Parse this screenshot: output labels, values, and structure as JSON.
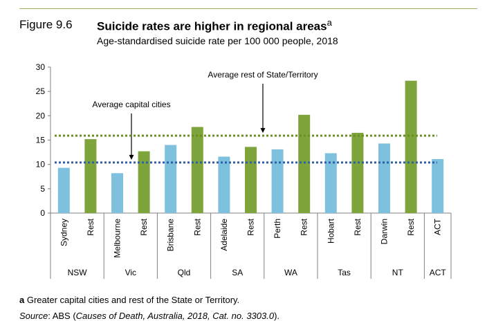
{
  "figure": {
    "label": "Figure 9.6",
    "title": "Suicide rates are higher in regional areas",
    "title_superscript": "a",
    "subtitle": "Age-standardised suicide rate per 100 000 people, 2018"
  },
  "footnote": {
    "marker": "a",
    "text": " Greater capital cities and rest of the State or Territory."
  },
  "source": {
    "label": "Source",
    "text": ": ABS (",
    "italic": "Causes of Death, Australia, 2018, Cat. no. 3303.0",
    "end": ")."
  },
  "chart_data": {
    "type": "bar",
    "ylim": [
      0,
      30
    ],
    "yticks": [
      "0",
      "5",
      "10",
      "15",
      "20",
      "25",
      "30"
    ],
    "bars": [
      {
        "label": "Sydney",
        "value": 9.3,
        "kind": "capital"
      },
      {
        "label": "Rest",
        "value": 15.2,
        "kind": "rest"
      },
      {
        "label": "Melbourne",
        "value": 8.2,
        "kind": "capital"
      },
      {
        "label": "Rest",
        "value": 12.7,
        "kind": "rest"
      },
      {
        "label": "Brisbane",
        "value": 14.0,
        "kind": "capital"
      },
      {
        "label": "Rest",
        "value": 17.7,
        "kind": "rest"
      },
      {
        "label": "Adelaide",
        "value": 11.6,
        "kind": "capital"
      },
      {
        "label": "Rest",
        "value": 13.6,
        "kind": "rest"
      },
      {
        "label": "Perth",
        "value": 13.1,
        "kind": "capital"
      },
      {
        "label": "Rest",
        "value": 20.2,
        "kind": "rest"
      },
      {
        "label": "Hobart",
        "value": 12.3,
        "kind": "capital"
      },
      {
        "label": "Rest",
        "value": 16.5,
        "kind": "rest"
      },
      {
        "label": "Darwin",
        "value": 14.3,
        "kind": "capital"
      },
      {
        "label": "Rest",
        "value": 27.2,
        "kind": "rest"
      },
      {
        "label": "ACT",
        "value": 11.1,
        "kind": "capital"
      }
    ],
    "groups": [
      {
        "label": "NSW",
        "count": 2
      },
      {
        "label": "Vic",
        "count": 2
      },
      {
        "label": "Qld",
        "count": 2
      },
      {
        "label": "SA",
        "count": 2
      },
      {
        "label": "WA",
        "count": 2
      },
      {
        "label": "Tas",
        "count": 2
      },
      {
        "label": "NT",
        "count": 2
      },
      {
        "label": "ACT",
        "count": 1
      }
    ],
    "reference_lines": [
      {
        "label": "Average capital cities",
        "value": 10.4,
        "color": "#2e5fa8"
      },
      {
        "label": "Average rest of State/Territory",
        "value": 15.9,
        "color": "#6b8e23"
      }
    ],
    "colors": {
      "capital": "#7ec1de",
      "rest": "#7ea53c"
    },
    "grid": false
  }
}
